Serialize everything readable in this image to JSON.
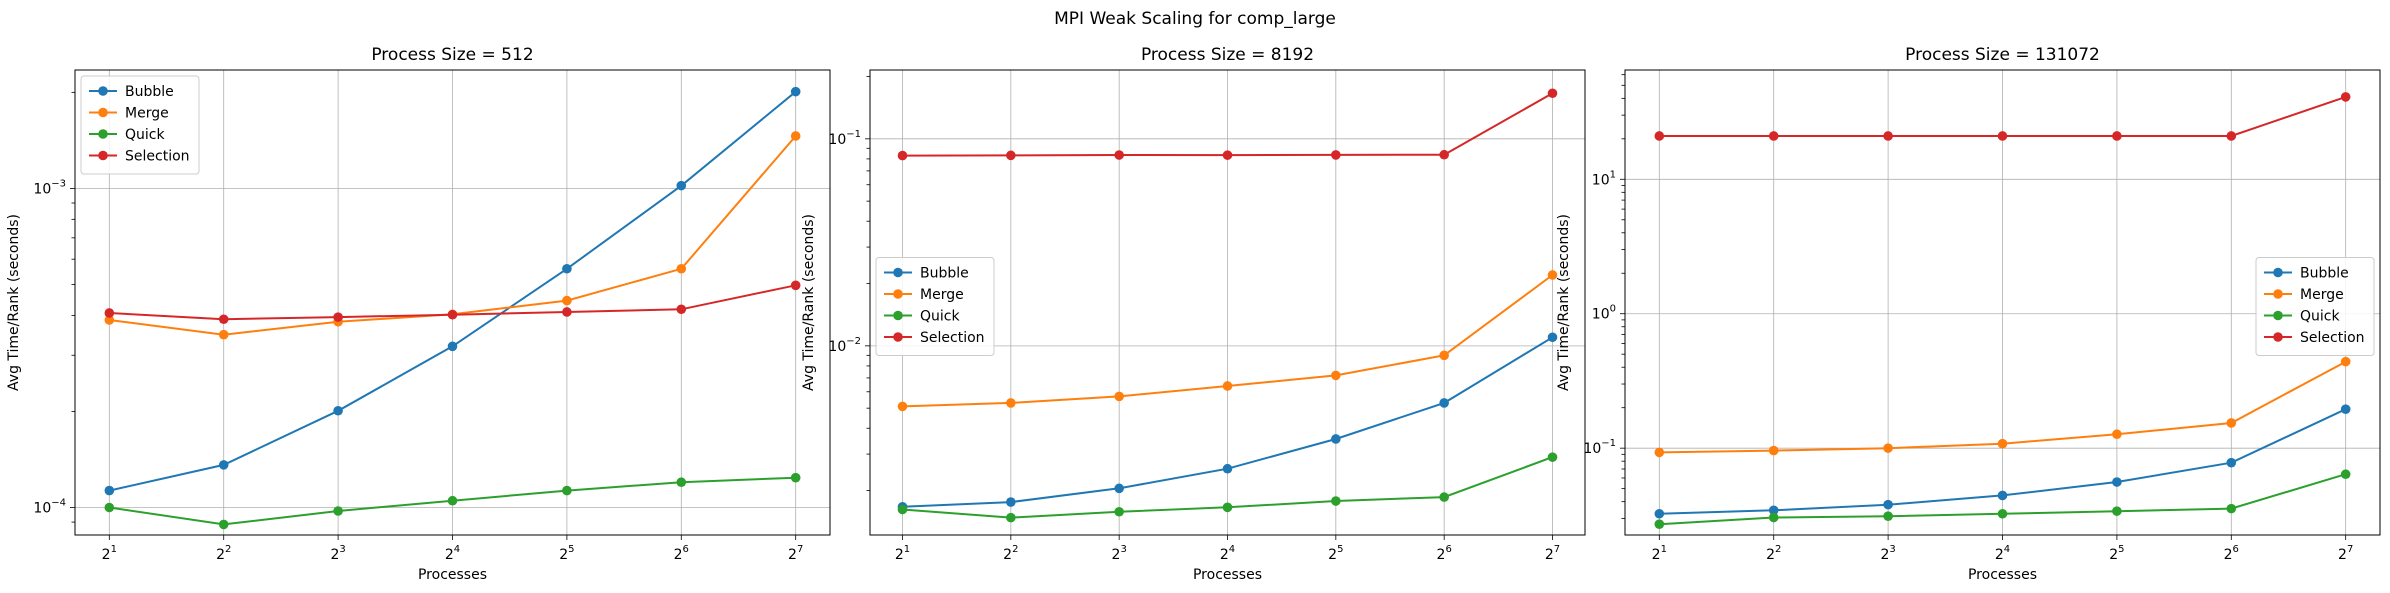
{
  "figure": {
    "suptitle": "MPI Weak Scaling for comp_large"
  },
  "colors": {
    "Bubble": "#1f77b4",
    "Merge": "#ff7f0e",
    "Quick": "#2ca02c",
    "Selection": "#d62728",
    "grid": "#b0b0b0"
  },
  "chart_data": [
    {
      "type": "line",
      "title": "Process Size = 512",
      "xlabel": "Processes",
      "ylabel": "Avg Time/Rank (seconds)",
      "x": [
        2,
        4,
        8,
        16,
        32,
        64,
        128
      ],
      "x_ticks": [
        {
          "base": "2",
          "exp": "1"
        },
        {
          "base": "2",
          "exp": "2"
        },
        {
          "base": "2",
          "exp": "3"
        },
        {
          "base": "2",
          "exp": "4"
        },
        {
          "base": "2",
          "exp": "5"
        },
        {
          "base": "2",
          "exp": "6"
        },
        {
          "base": "2",
          "exp": "7"
        }
      ],
      "xscale": "log2",
      "yscale": "log",
      "ylim": [
        8.2e-05,
        0.00235
      ],
      "y_ticks": [
        {
          "value": 0.0001,
          "base": "10",
          "exp": "−4"
        },
        {
          "value": 0.001,
          "base": "10",
          "exp": "−3"
        }
      ],
      "grid": true,
      "legend_position": "upper-left",
      "series": [
        {
          "name": "Bubble",
          "values": [
            0.000113,
            0.000136,
            0.000201,
            0.00032,
            0.00056,
            0.00102,
            0.00201
          ]
        },
        {
          "name": "Merge",
          "values": [
            0.000387,
            0.000348,
            0.000382,
            0.000403,
            0.000445,
            0.00056,
            0.00146
          ]
        },
        {
          "name": "Quick",
          "values": [
            0.0001,
            8.85e-05,
            9.75e-05,
            0.000105,
            0.000113,
            0.00012,
            0.000124
          ]
        },
        {
          "name": "Selection",
          "values": [
            0.000407,
            0.000389,
            0.000395,
            0.000402,
            0.00041,
            0.000418,
            0.000497
          ]
        }
      ]
    },
    {
      "type": "line",
      "title": "Process Size = 8192",
      "xlabel": "Processes",
      "ylabel": "Avg Time/Rank (seconds)",
      "x": [
        2,
        4,
        8,
        16,
        32,
        64,
        128
      ],
      "x_ticks": [
        {
          "base": "2",
          "exp": "1"
        },
        {
          "base": "2",
          "exp": "2"
        },
        {
          "base": "2",
          "exp": "3"
        },
        {
          "base": "2",
          "exp": "4"
        },
        {
          "base": "2",
          "exp": "5"
        },
        {
          "base": "2",
          "exp": "6"
        },
        {
          "base": "2",
          "exp": "7"
        }
      ],
      "xscale": "log2",
      "yscale": "log",
      "ylim": [
        0.00122,
        0.215
      ],
      "y_ticks": [
        {
          "value": 0.01,
          "base": "10",
          "exp": "−2"
        },
        {
          "value": 0.1,
          "base": "10",
          "exp": "−1"
        }
      ],
      "grid": true,
      "legend_position": "center-left",
      "series": [
        {
          "name": "Bubble",
          "values": [
            0.00167,
            0.00176,
            0.00205,
            0.00255,
            0.00355,
            0.0053,
            0.011
          ]
        },
        {
          "name": "Merge",
          "values": [
            0.0051,
            0.0053,
            0.0057,
            0.0064,
            0.0072,
            0.009,
            0.022
          ]
        },
        {
          "name": "Quick",
          "values": [
            0.00162,
            0.00148,
            0.00158,
            0.00166,
            0.00178,
            0.00186,
            0.0029
          ]
        },
        {
          "name": "Selection",
          "values": [
            0.083,
            0.0832,
            0.0835,
            0.0834,
            0.0836,
            0.0838,
            0.166
          ]
        }
      ]
    },
    {
      "type": "line",
      "title": "Process Size = 131072",
      "xlabel": "Processes",
      "ylabel": "Avg Time/Rank (seconds)",
      "x": [
        2,
        4,
        8,
        16,
        32,
        64,
        128
      ],
      "x_ticks": [
        {
          "base": "2",
          "exp": "1"
        },
        {
          "base": "2",
          "exp": "2"
        },
        {
          "base": "2",
          "exp": "3"
        },
        {
          "base": "2",
          "exp": "4"
        },
        {
          "base": "2",
          "exp": "5"
        },
        {
          "base": "2",
          "exp": "6"
        },
        {
          "base": "2",
          "exp": "7"
        }
      ],
      "xscale": "log2",
      "yscale": "log",
      "ylim": [
        0.0226,
        65
      ],
      "y_ticks": [
        {
          "value": 0.1,
          "base": "10",
          "exp": "−1"
        },
        {
          "value": 1,
          "base": "10",
          "exp": "0"
        },
        {
          "value": 10,
          "base": "10",
          "exp": "1"
        }
      ],
      "grid": true,
      "legend_position": "center-right",
      "series": [
        {
          "name": "Bubble",
          "values": [
            0.0325,
            0.0345,
            0.038,
            0.0445,
            0.056,
            0.078,
            0.195
          ]
        },
        {
          "name": "Merge",
          "values": [
            0.093,
            0.096,
            0.1,
            0.108,
            0.127,
            0.154,
            0.44
          ]
        },
        {
          "name": "Quick",
          "values": [
            0.0272,
            0.0305,
            0.0312,
            0.0325,
            0.034,
            0.0355,
            0.064
          ]
        },
        {
          "name": "Selection",
          "values": [
            21.0,
            21.0,
            21.0,
            21.0,
            21.0,
            21.0,
            41.0
          ]
        }
      ]
    }
  ]
}
